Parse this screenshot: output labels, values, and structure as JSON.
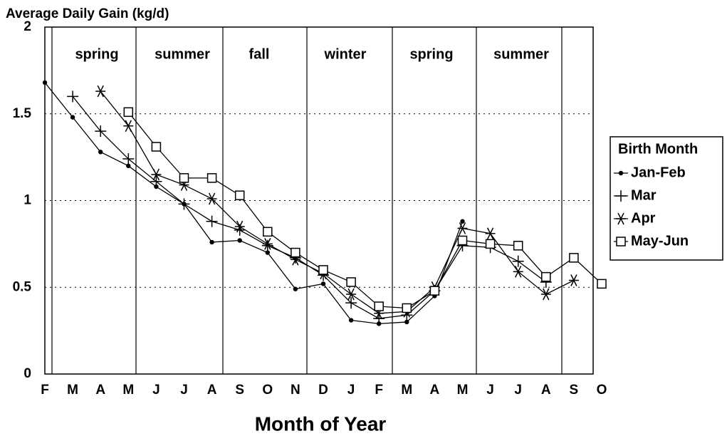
{
  "chart_data": {
    "type": "line",
    "title": "Average Daily Gain (kg/d)",
    "x_label": "Month of Year",
    "legend_title": "Birth Month",
    "legend": "right",
    "grid": true,
    "categories": [
      "F",
      "M",
      "A",
      "M",
      "J",
      "J",
      "A",
      "S",
      "O",
      "N",
      "D",
      "J",
      "F",
      "M",
      "A",
      "M",
      "J",
      "J",
      "A",
      "S",
      "O"
    ],
    "seasons": [
      "spring",
      "summer",
      "fall",
      "winter",
      "spring",
      "summer"
    ],
    "ylim": [
      0,
      2
    ],
    "yticks": [
      0,
      0.5,
      1,
      1.5,
      2
    ],
    "series": [
      {
        "name": "Jan-Feb",
        "color": "#000000",
        "marker": "dot",
        "values": [
          1.68,
          1.48,
          1.28,
          1.2,
          1.08,
          0.98,
          0.76,
          0.77,
          0.7,
          0.49,
          0.52,
          0.31,
          0.29,
          0.3,
          0.45,
          0.88,
          null,
          null,
          null,
          null,
          null
        ]
      },
      {
        "name": "Mar",
        "color": "#000000",
        "marker": "plus",
        "values": [
          null,
          1.6,
          1.4,
          1.24,
          1.11,
          0.98,
          0.88,
          0.83,
          0.74,
          0.67,
          0.57,
          0.41,
          0.32,
          0.34,
          0.48,
          0.74,
          0.73,
          0.65,
          0.53,
          null,
          null
        ]
      },
      {
        "name": "Apr",
        "color": "#000000",
        "marker": "star",
        "values": [
          null,
          null,
          1.63,
          1.43,
          1.15,
          1.09,
          1.01,
          0.85,
          0.75,
          0.66,
          0.58,
          0.46,
          0.35,
          0.36,
          0.5,
          0.84,
          0.81,
          0.59,
          0.46,
          0.54,
          null
        ]
      },
      {
        "name": "May-Jun",
        "color": "#000000",
        "marker": "square",
        "values": [
          null,
          null,
          null,
          1.51,
          1.31,
          1.13,
          1.13,
          1.03,
          0.82,
          0.7,
          0.6,
          0.53,
          0.39,
          0.38,
          0.48,
          0.77,
          0.75,
          0.74,
          0.56,
          0.67,
          0.52
        ]
      }
    ]
  }
}
